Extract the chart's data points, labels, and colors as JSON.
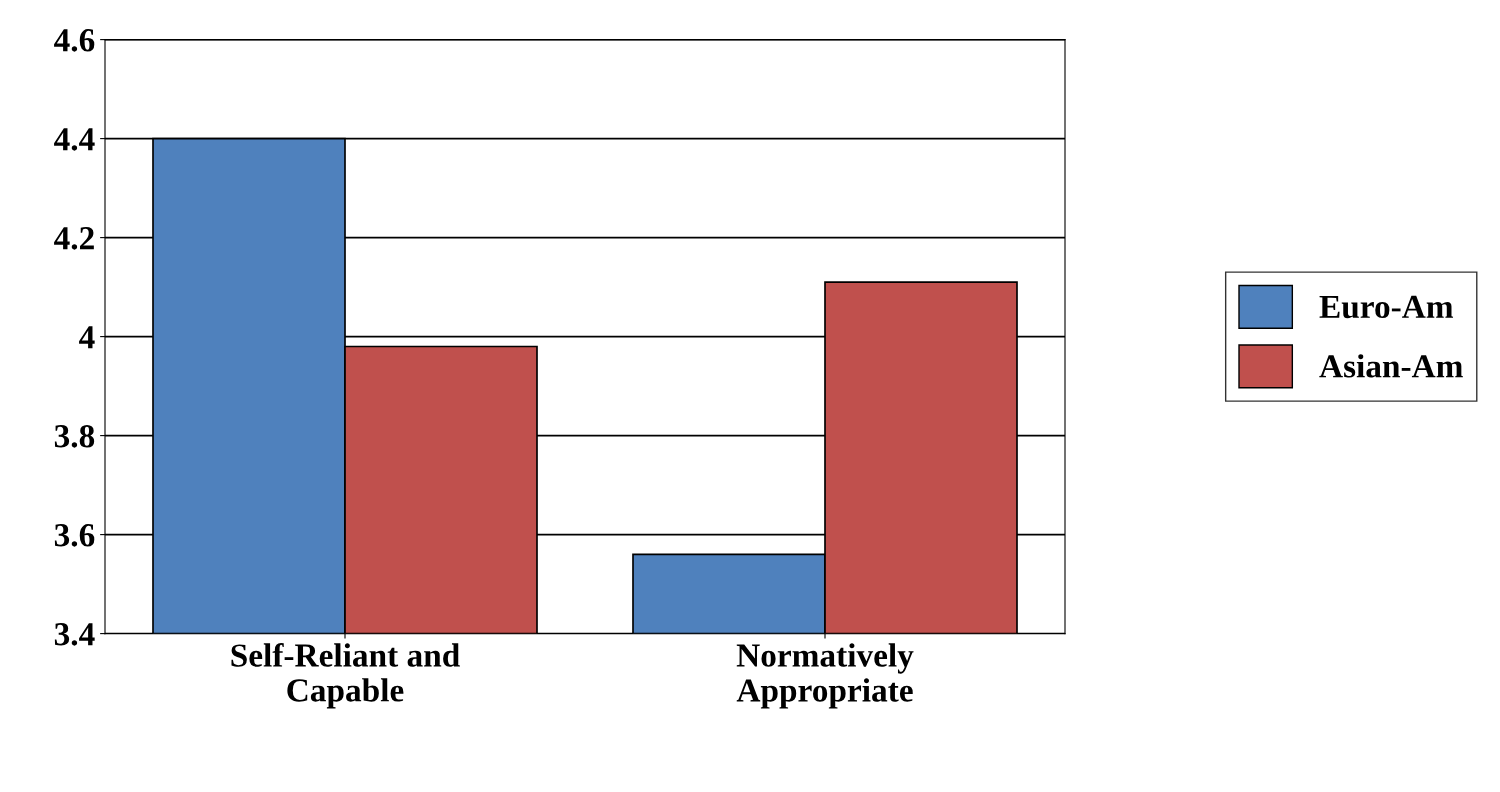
{
  "chart_data": {
    "type": "bar",
    "categories": [
      "Self-Reliant and\nCapable",
      "Normatively\nAppropriate"
    ],
    "series": [
      {
        "name": "Euro-Am",
        "color": "#4f81bd",
        "values": [
          4.4,
          3.56
        ]
      },
      {
        "name": "Asian-Am",
        "color": "#c0504d",
        "values": [
          3.98,
          4.11
        ]
      }
    ],
    "ylim": [
      3.4,
      4.6
    ],
    "yticks": [
      3.4,
      3.6,
      3.8,
      {
        "value": 4.0,
        "label": "4"
      },
      4.2,
      4.4,
      4.6
    ],
    "grid": "y",
    "legend": "right"
  }
}
